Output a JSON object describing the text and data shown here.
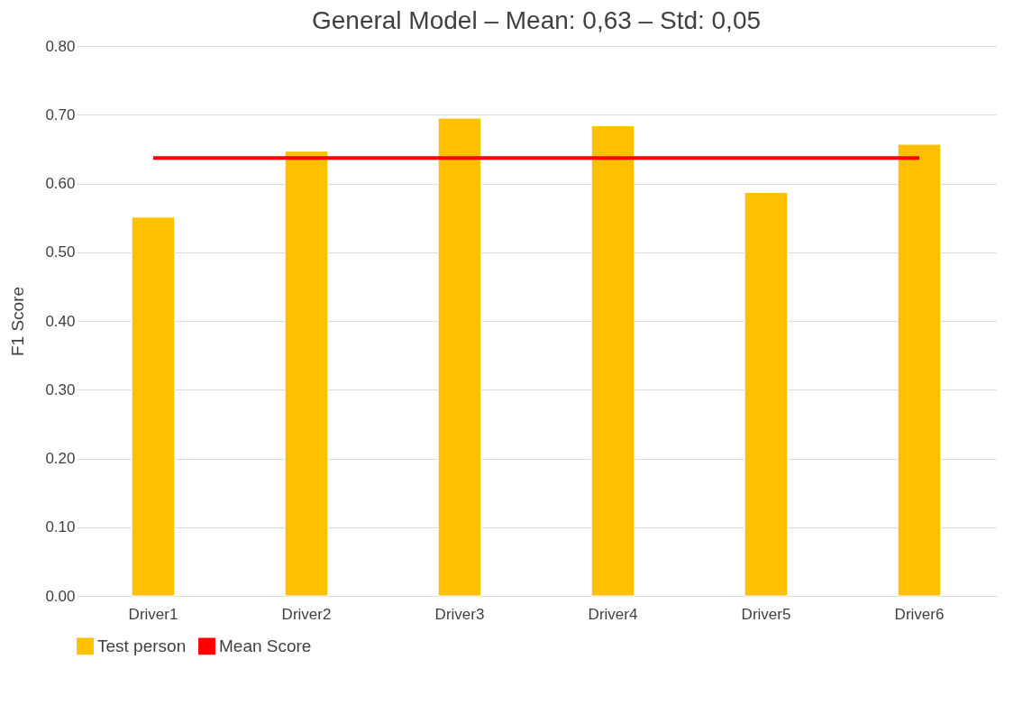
{
  "chart_data": {
    "type": "bar",
    "title": "General Model – Mean: 0,63 – Std: 0,05",
    "ylabel": "F1 Score",
    "categories": [
      "Driver1",
      "Driver2",
      "Driver3",
      "Driver4",
      "Driver5",
      "Driver6"
    ],
    "series": [
      {
        "name": "Test person",
        "color": "#ffc000",
        "values": [
          0.551,
          0.647,
          0.695,
          0.684,
          0.587,
          0.657
        ]
      },
      {
        "name": "Mean Score",
        "type": "line",
        "color": "#ff0000",
        "values": [
          0.637,
          0.637,
          0.637,
          0.637,
          0.637,
          0.637
        ]
      }
    ],
    "ylim": [
      0,
      0.8
    ],
    "yticks": [
      {
        "value": 0,
        "label": "0.00"
      },
      {
        "value": 0.1,
        "label": "0.10"
      },
      {
        "value": 0.2,
        "label": "0.20"
      },
      {
        "value": 0.3,
        "label": "0.30"
      },
      {
        "value": 0.4,
        "label": "0.40"
      },
      {
        "value": 0.5,
        "label": "0.50"
      },
      {
        "value": 0.6,
        "label": "0.60"
      },
      {
        "value": 0.7,
        "label": "0.70"
      },
      {
        "value": 0.8,
        "label": "0.80"
      }
    ],
    "grid": "y",
    "legend": "bottom"
  }
}
